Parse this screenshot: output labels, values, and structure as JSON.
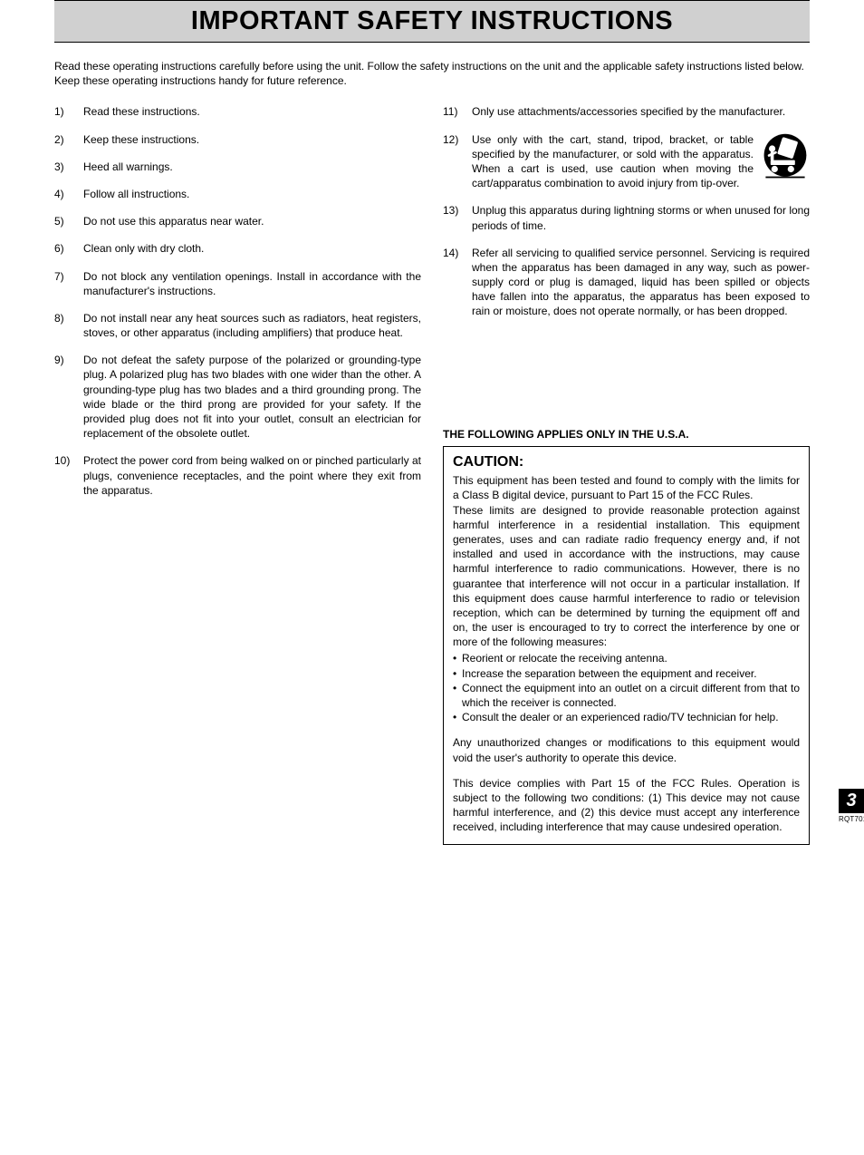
{
  "header": {
    "title": "IMPORTANT SAFETY INSTRUCTIONS"
  },
  "intro": "Read these operating instructions carefully before using the unit. Follow the safety instructions on the unit and the applicable safety instructions listed below. Keep these operating instructions handy for future reference.",
  "instructions_left": [
    {
      "n": "1)",
      "t": "Read these instructions."
    },
    {
      "n": "2)",
      "t": "Keep these instructions."
    },
    {
      "n": "3)",
      "t": "Heed all warnings."
    },
    {
      "n": "4)",
      "t": "Follow all instructions."
    },
    {
      "n": "5)",
      "t": "Do not use this apparatus near water."
    },
    {
      "n": "6)",
      "t": "Clean only with dry cloth."
    },
    {
      "n": "7)",
      "t": "Do not block any ventilation openings. Install in accordance with the manufacturer's instructions."
    },
    {
      "n": "8)",
      "t": "Do not install near any heat sources such as radiators, heat registers, stoves, or other apparatus (including amplifiers) that produce heat."
    },
    {
      "n": "9)",
      "t": "Do not defeat the safety purpose of the polarized or grounding-type plug. A polarized plug has two blades with one wider than the other. A grounding-type plug has two blades and a third grounding prong. The wide blade or the third prong are provided for your safety. If the provided plug does not fit into your outlet, consult an electrician for replacement of the obsolete outlet."
    },
    {
      "n": "10)",
      "t": "Protect the power cord from being walked on or pinched particularly at plugs, convenience receptacles, and the point where they exit from the apparatus."
    }
  ],
  "instructions_right": [
    {
      "n": "11)",
      "t": "Only use attachments/accessories specified by the manufacturer."
    },
    {
      "n": "12)",
      "t": "Use only with the cart, stand, tripod, bracket, or table specified by the manufacturer, or sold with the apparatus. When a cart is used, use caution when moving the cart/apparatus combination to avoid injury from tip-over.",
      "icon": true
    },
    {
      "n": "13)",
      "t": "Unplug this apparatus during lightning storms or when unused for long periods of time."
    },
    {
      "n": "14)",
      "t": "Refer all servicing to qualified service personnel. Servicing is required when the apparatus has been damaged in any way, such as power-supply cord or plug is damaged, liquid has been spilled or objects have fallen into the apparatus, the apparatus has been exposed to rain or moisture, does not operate normally, or has been dropped."
    }
  ],
  "usa": {
    "heading": "THE FOLLOWING APPLIES ONLY IN THE U.S.A.",
    "caution_title": "CAUTION:",
    "p1": "This equipment has been tested and found to comply with the limits for a Class B digital device, pursuant to Part 15 of the FCC Rules.",
    "p2": "These limits are designed to provide reasonable protection against harmful interference in a residential installation. This equipment generates, uses and can radiate radio frequency energy and, if not installed and used in accordance with the instructions, may cause harmful interference to radio communications. However, there is no guarantee that interference will not occur in a particular installation. If this equipment does cause harmful interference to radio or television reception, which can be determined by turning the equipment off and on, the user is encouraged to try to correct the interference by one or more of the following measures:",
    "bullets": [
      "Reorient or relocate the receiving antenna.",
      "Increase the separation between the equipment and receiver.",
      "Connect the equipment into an outlet on a circuit different from that to which the receiver is connected.",
      "Consult the dealer or an experienced radio/TV technician for help."
    ],
    "p3": "Any unauthorized changes or modifications to this equipment would void the user's authority to operate this device.",
    "p4": "This device complies with Part 15 of the FCC Rules. Operation is subject to the following two conditions: (1) This device may not cause harmful interference, and (2) this device must accept any interference received, including interference that may cause undesired operation."
  },
  "footer": {
    "page": "3",
    "code": "RQT7018"
  },
  "colors": {
    "header_bg": "#d0d0d0",
    "text": "#000000",
    "page_bg": "#ffffff"
  }
}
